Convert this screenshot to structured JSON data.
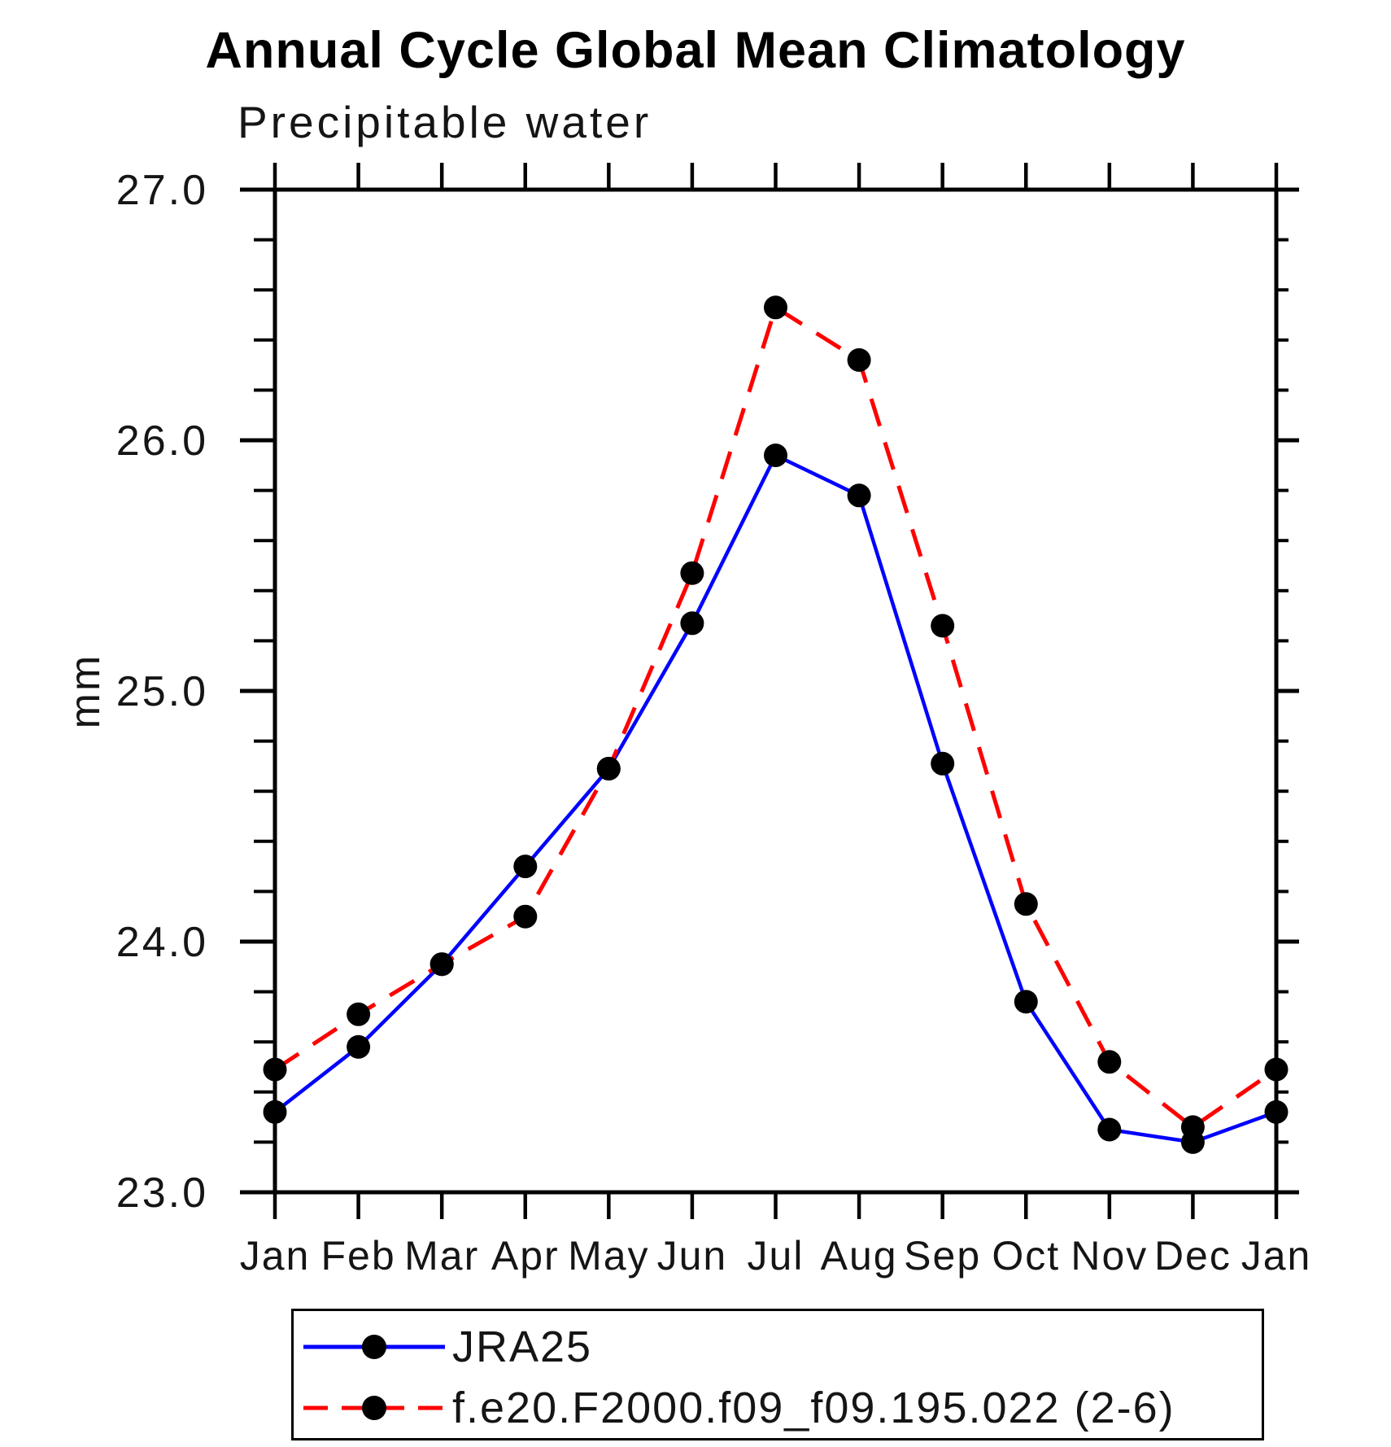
{
  "chart_data": {
    "type": "line",
    "title": "Annual Cycle Global Mean Climatology",
    "subtitle": "Precipitable water",
    "ylabel": "mm",
    "xlabel": "",
    "categories": [
      "Jan",
      "Feb",
      "Mar",
      "Apr",
      "May",
      "Jun",
      "Jul",
      "Aug",
      "Sep",
      "Oct",
      "Nov",
      "Dec",
      "Jan"
    ],
    "series": [
      {
        "name": "JRA25",
        "color": "#0000ff",
        "style": "solid",
        "marker": "filled-circle",
        "marker_color": "#000000",
        "values": [
          23.32,
          23.58,
          23.91,
          24.3,
          24.69,
          25.27,
          25.94,
          25.78,
          24.71,
          23.76,
          23.25,
          23.2,
          23.32
        ]
      },
      {
        "name": "f.e20.F2000.f09_f09.195.022 (2-6)",
        "color": "#ff0000",
        "style": "dashed",
        "marker": "filled-circle",
        "marker_color": "#000000",
        "values": [
          23.49,
          23.71,
          23.91,
          24.1,
          24.69,
          25.47,
          26.53,
          26.32,
          25.26,
          24.15,
          23.52,
          23.26,
          23.49
        ]
      }
    ],
    "ylim": [
      23.0,
      27.0
    ],
    "ytick_major": [
      23,
      24,
      25,
      26,
      27
    ],
    "ytick_labels": [
      "23.0",
      "24.0",
      "25.0",
      "26.0",
      "27.0"
    ],
    "ytick_minor_step": 0.2,
    "grid": false,
    "ticks": "outward-all-sides",
    "legend_position": "bottom-left-box"
  }
}
